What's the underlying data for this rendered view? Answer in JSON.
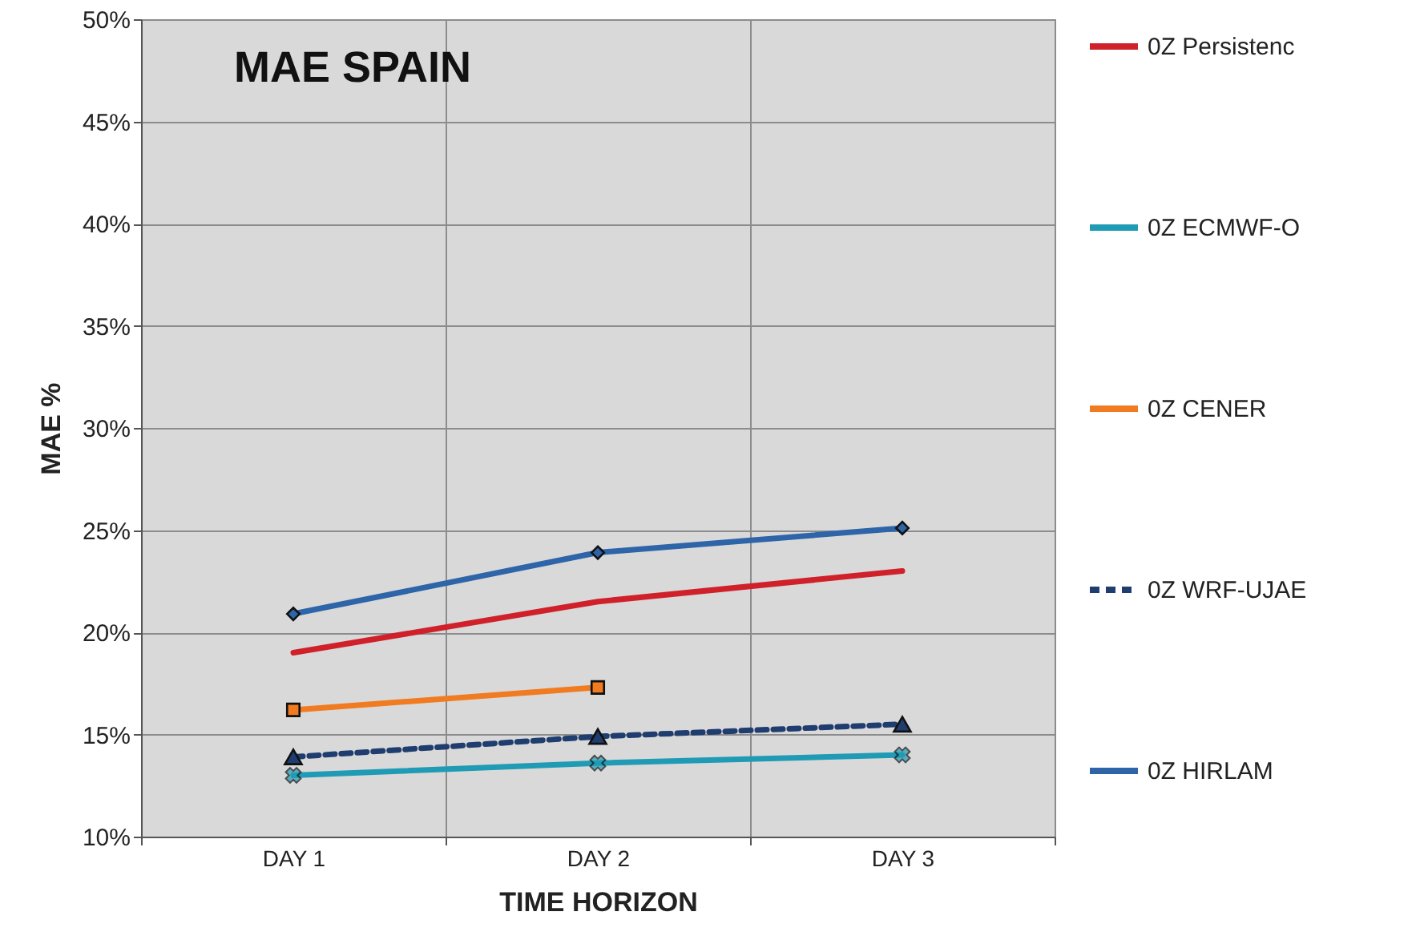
{
  "chart_data": {
    "type": "line",
    "title": "MAE SPAIN",
    "xlabel": "TIME HORIZON",
    "ylabel": "MAE %",
    "categories": [
      "DAY 1",
      "DAY 2",
      "DAY 3"
    ],
    "series": [
      {
        "name": "0Z  Persistenc",
        "color": "#d0202a",
        "values": [
          19.0,
          21.5,
          23.0
        ],
        "marker": "none",
        "line_style": "solid"
      },
      {
        "name": "0Z  ECMWF-O",
        "color": "#1f9bb5",
        "values": [
          13.0,
          13.6,
          14.0
        ],
        "marker": "cross",
        "line_style": "solid"
      },
      {
        "name": "0Z  CENER",
        "color": "#f07b20",
        "values": [
          16.2,
          17.3,
          null
        ],
        "marker": "square",
        "line_style": "solid"
      },
      {
        "name": "0Z  WRF-UJAE",
        "color": "#1f3d6e",
        "values": [
          13.9,
          14.9,
          15.5
        ],
        "marker": "triangle",
        "line_style": "dashed"
      },
      {
        "name": "0Z  HIRLAM",
        "color": "#2e64a8",
        "values": [
          20.9,
          23.9,
          25.1
        ],
        "marker": "diamond",
        "line_style": "solid"
      }
    ],
    "ylim": [
      10,
      50
    ],
    "yticks": [
      {
        "value": 10,
        "label": "10%"
      },
      {
        "value": 15,
        "label": "15%"
      },
      {
        "value": 20,
        "label": "20%"
      },
      {
        "value": 25,
        "label": "25%"
      },
      {
        "value": 30,
        "label": "30%"
      },
      {
        "value": 35,
        "label": "35%"
      },
      {
        "value": 40,
        "label": "40%"
      },
      {
        "value": 45,
        "label": "45%"
      },
      {
        "value": 50,
        "label": "50%"
      }
    ],
    "grid": true,
    "legend": "right"
  }
}
